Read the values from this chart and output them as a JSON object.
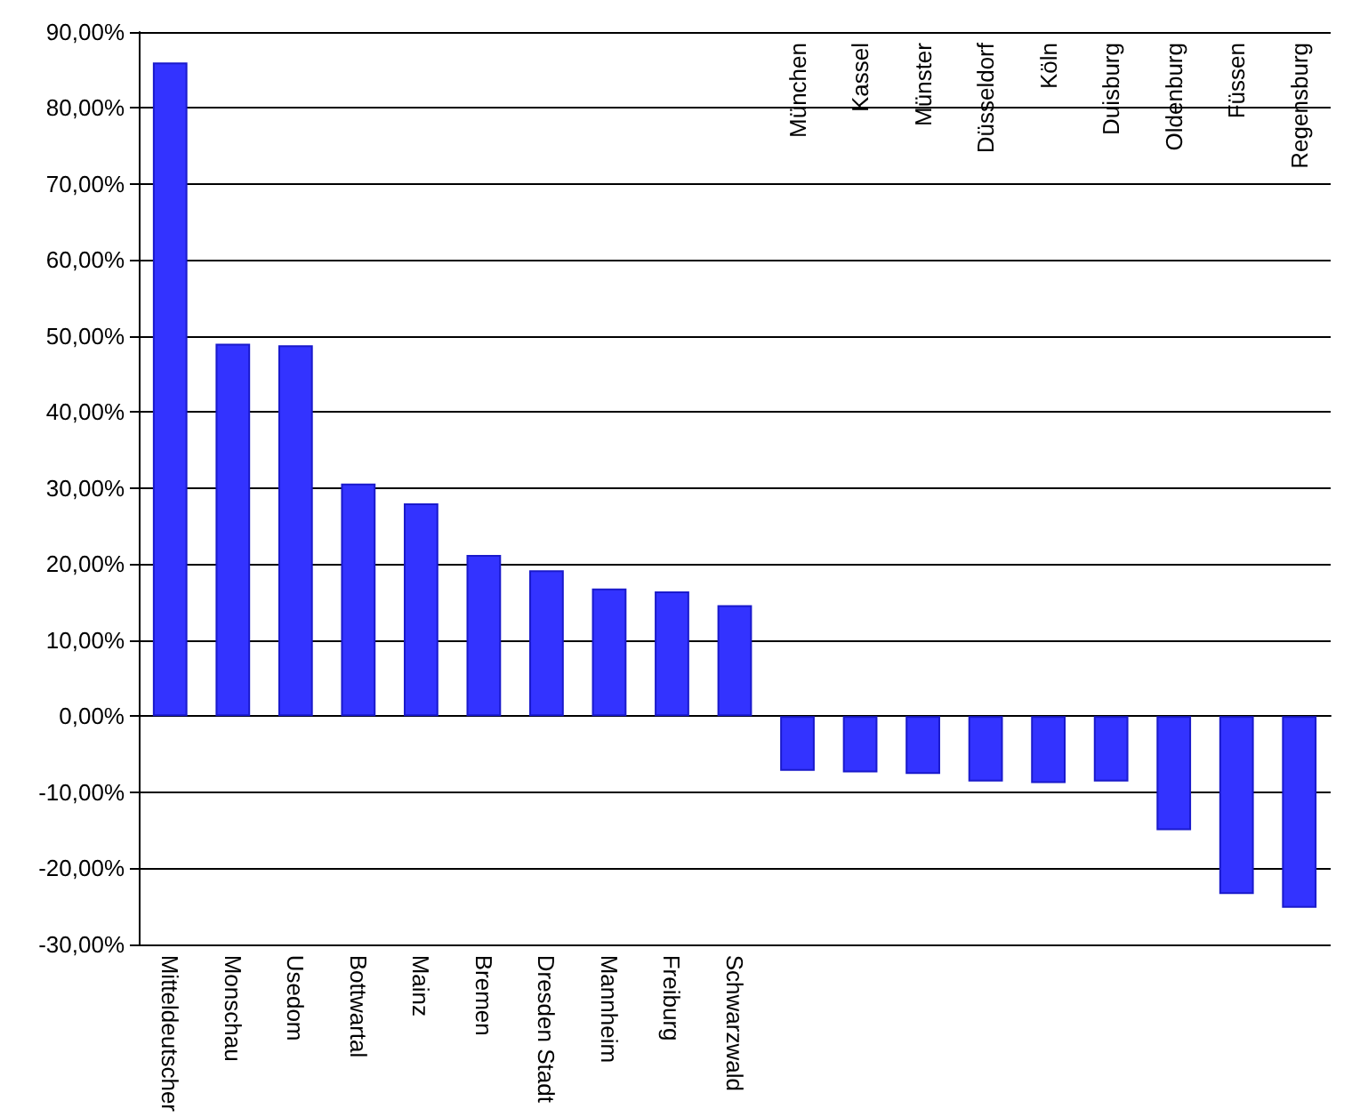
{
  "chart_data": {
    "type": "bar",
    "categories": [
      "Mitteldeutscher",
      "Monschau",
      "Usedom",
      "Bottwartal",
      "Mainz",
      "Bremen",
      "Dresden Stadt",
      "Mannheim",
      "Freiburg",
      "Schwarzwald",
      "München",
      "Kassel",
      "Münster",
      "Düsseldorf",
      "Köln",
      "Duisburg",
      "Oldenburg",
      "Füssen",
      "Regensburg"
    ],
    "values": [
      86,
      49,
      48.8,
      30.6,
      28,
      21.2,
      19.2,
      16.8,
      16.4,
      14.6,
      -7.2,
      -7.4,
      -7.6,
      -8.6,
      -8.8,
      -8.6,
      -15,
      -23.4,
      -25.2
    ],
    "color": "#3333ff",
    "ylim": [
      -30,
      90
    ],
    "yticks": [
      {
        "value": -30,
        "label": "-30,00%"
      },
      {
        "value": -20,
        "label": "-20,00%"
      },
      {
        "value": -10,
        "label": "-10,00%"
      },
      {
        "value": 0,
        "label": "0,00%"
      },
      {
        "value": 10,
        "label": "10,00%"
      },
      {
        "value": 20,
        "label": "20,00%"
      },
      {
        "value": 30,
        "label": "30,00%"
      },
      {
        "value": 40,
        "label": "40,00%"
      },
      {
        "value": 50,
        "label": "50,00%"
      },
      {
        "value": 60,
        "label": "60,00%"
      },
      {
        "value": 70,
        "label": "70,00%"
      },
      {
        "value": 80,
        "label": "80,00%"
      },
      {
        "value": 90,
        "label": "90,00%"
      }
    ],
    "grid": "y"
  }
}
